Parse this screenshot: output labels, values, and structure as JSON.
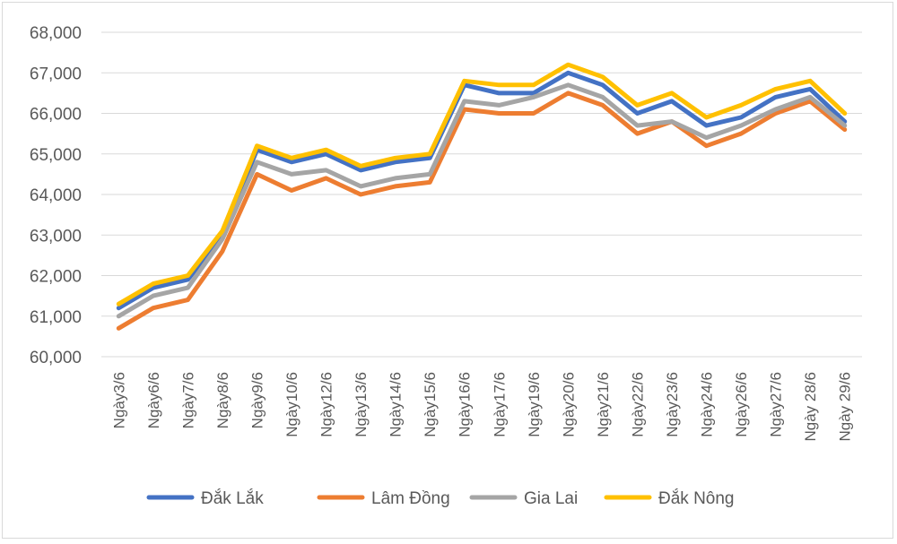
{
  "chart_data": {
    "type": "line",
    "categories": [
      "Ngày3/6",
      "Ngày6/6",
      "Ngày7/6",
      "Ngày8/6",
      "Ngày9/6",
      "Ngày10/6",
      "Ngày12/6",
      "Ngày13/6",
      "Ngày14/6",
      "Ngày15/6",
      "Ngày16/6",
      "Ngày17/6",
      "Ngày19/6",
      "Ngày20/6",
      "Ngày21/6",
      "Ngày22/6",
      "Ngày23/6",
      "Ngày24/6",
      "Ngày26/6",
      "Ngày27/6",
      "Ngày 28/6",
      "Ngày 29/6"
    ],
    "series": [
      {
        "name": "Đắk Lắk",
        "color": "#4472C4",
        "values": [
          61200,
          61700,
          61900,
          63000,
          65100,
          64800,
          65000,
          64600,
          64800,
          64900,
          66700,
          66500,
          66500,
          67000,
          66700,
          66000,
          66300,
          65700,
          65900,
          66400,
          66600,
          65800
        ]
      },
      {
        "name": "Lâm Đồng",
        "color": "#ED7D31",
        "values": [
          60700,
          61200,
          61400,
          62600,
          64500,
          64100,
          64400,
          64000,
          64200,
          64300,
          66100,
          66000,
          66000,
          66500,
          66200,
          65500,
          65800,
          65200,
          65500,
          66000,
          66300,
          65600
        ]
      },
      {
        "name": "Gia Lai",
        "color": "#A5A5A5",
        "values": [
          61000,
          61500,
          61700,
          62900,
          64800,
          64500,
          64600,
          64200,
          64400,
          64500,
          66300,
          66200,
          66400,
          66700,
          66400,
          65700,
          65800,
          65400,
          65700,
          66100,
          66400,
          65700
        ]
      },
      {
        "name": "Đắk Nông",
        "color": "#FFC000",
        "values": [
          61300,
          61800,
          62000,
          63100,
          65200,
          64900,
          65100,
          64700,
          64900,
          65000,
          66800,
          66700,
          66700,
          67200,
          66900,
          66200,
          66500,
          65900,
          66200,
          66600,
          66800,
          66000
        ]
      }
    ],
    "yticks": [
      "60,000",
      "61,000",
      "62,000",
      "63,000",
      "64,000",
      "65,000",
      "66,000",
      "67,000",
      "68,000"
    ],
    "ylim": [
      60000,
      68000
    ],
    "grid": true,
    "legend_position": "bottom"
  }
}
